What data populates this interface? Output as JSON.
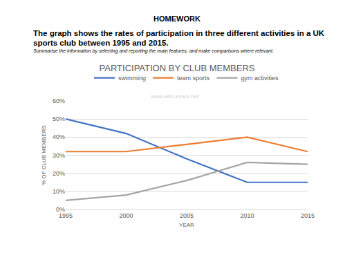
{
  "chart_data": {
    "type": "line",
    "heading": "HOMEWORK",
    "subtitle": "The graph shows the rates of participation in three different activities in a UK sports club between 1995 and 2015.",
    "instructions": "Summarise the information by selecting and reporting the main features, and make comparisons where relevant.",
    "title": "PARTICIPATION BY CLUB MEMBERS",
    "watermark": "www.ielts-exam.net",
    "x_label": "YEAR",
    "y_label": "% OF CLUB MEMBERS",
    "categories": [
      "1995",
      "2000",
      "2005",
      "2010",
      "2015"
    ],
    "series": [
      {
        "name": "swimming",
        "color": "#4472c4",
        "values": [
          50,
          42,
          28,
          15,
          15
        ]
      },
      {
        "name": "team sports",
        "color": "#ed7d31",
        "values": [
          32,
          32,
          36,
          40,
          32
        ]
      },
      {
        "name": "gym activities",
        "color": "#a5a5a5",
        "values": [
          5,
          8,
          16,
          26,
          25
        ]
      }
    ],
    "ylim": [
      0,
      60
    ],
    "yticks": [
      {
        "value": 0,
        "label": "0%"
      },
      {
        "value": 10,
        "label": "10%"
      },
      {
        "value": 20,
        "label": "20%"
      },
      {
        "value": 30,
        "label": "30%"
      },
      {
        "value": 40,
        "label": "40%"
      },
      {
        "value": 50,
        "label": "50%"
      },
      {
        "value": 60,
        "label": "60%"
      }
    ],
    "grid": true,
    "legend": "top"
  }
}
